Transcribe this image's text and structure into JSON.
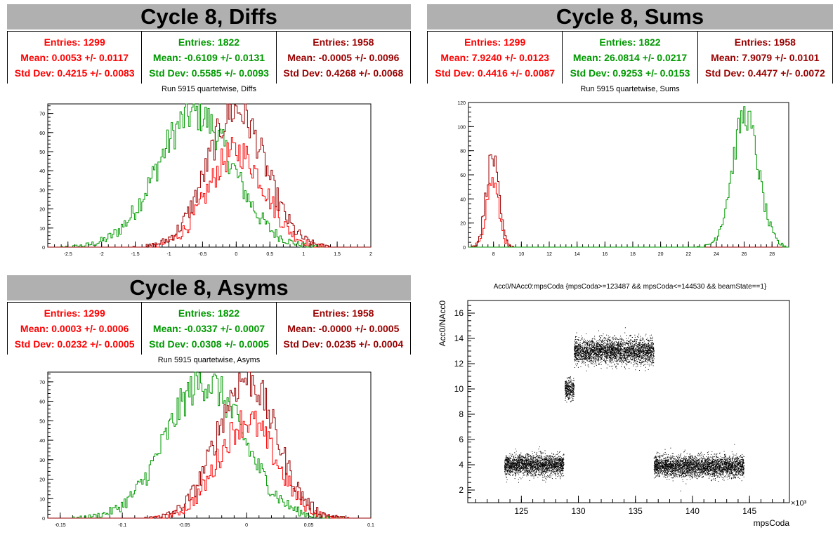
{
  "colors": {
    "red": "#ff0000",
    "green": "#009900",
    "darkred": "#990000"
  },
  "panels": {
    "diffs": {
      "title": "Cycle 8, Diffs",
      "subtitle": "Run 5915 quartetwise, Diffs",
      "stats": [
        {
          "color": "red",
          "entries": "Entries: 1299",
          "mean": "Mean: 0.0053 +/- 0.0117",
          "std": "Std Dev: 0.4215 +/- 0.0083"
        },
        {
          "color": "green",
          "entries": "Entries: 1822",
          "mean": "Mean: -0.6109 +/- 0.0131",
          "std": "Std Dev: 0.5585 +/- 0.0093"
        },
        {
          "color": "darkred",
          "entries": "Entries: 1958",
          "mean": "Mean: -0.0005 +/- 0.0096",
          "std": "Std Dev: 0.4268 +/- 0.0068"
        }
      ]
    },
    "sums": {
      "title": "Cycle 8, Sums",
      "subtitle": "Run 5915 quartetwise, Sums",
      "stats": [
        {
          "color": "red",
          "entries": "Entries: 1299",
          "mean": "Mean: 7.9240 +/- 0.0123",
          "std": "Std Dev: 0.4416 +/- 0.0087"
        },
        {
          "color": "green",
          "entries": "Entries: 1822",
          "mean": "Mean: 26.0814 +/- 0.0217",
          "std": "Std Dev: 0.9253 +/- 0.0153"
        },
        {
          "color": "darkred",
          "entries": "Entries: 1958",
          "mean": "Mean: 7.9079 +/- 0.0101",
          "std": "Std Dev: 0.4477 +/- 0.0072"
        }
      ]
    },
    "asyms": {
      "title": "Cycle 8, Asyms",
      "subtitle": "Run 5915 quartetwise, Asyms",
      "stats": [
        {
          "color": "red",
          "entries": "Entries: 1299",
          "mean": "Mean: 0.0003 +/- 0.0006",
          "std": "Std Dev: 0.0232 +/- 0.0005"
        },
        {
          "color": "green",
          "entries": "Entries: 1822",
          "mean": "Mean: -0.0337 +/- 0.0007",
          "std": "Std Dev: 0.0308 +/- 0.0005"
        },
        {
          "color": "darkred",
          "entries": "Entries: 1958",
          "mean": "Mean: -0.0000 +/- 0.0005",
          "std": "Std Dev: 0.0235 +/- 0.0004"
        }
      ]
    }
  },
  "chart_data": [
    {
      "id": "diffs",
      "type": "histogram",
      "title": "Run 5915 quartetwise, Diffs",
      "xlim": [
        -2.8,
        2.0
      ],
      "ylim": [
        0,
        75
      ],
      "xticks": [
        "-2.5",
        "-2",
        "-1.5",
        "-1",
        "-0.5",
        "0",
        "0.5",
        "1",
        "1.5",
        "2"
      ],
      "xtick_values": [
        -2.5,
        -2,
        -1.5,
        -1,
        -0.5,
        0,
        0.5,
        1,
        1.5,
        2
      ],
      "yticks": [
        "0",
        "10",
        "20",
        "30",
        "40",
        "50",
        "60",
        "70"
      ],
      "ytick_values": [
        0,
        10,
        20,
        30,
        40,
        50,
        60,
        70
      ],
      "series": [
        {
          "color": "green",
          "mean": -0.6109,
          "sigma": 0.5585,
          "peak": 70
        },
        {
          "color": "red",
          "mean": 0.0053,
          "sigma": 0.4215,
          "peak": 50
        },
        {
          "color": "darkred",
          "mean": -0.0005,
          "sigma": 0.4268,
          "peak": 72
        }
      ]
    },
    {
      "id": "sums",
      "type": "histogram",
      "title": "Run 5915 quartetwise, Sums",
      "xlim": [
        6.2,
        29.2
      ],
      "ylim": [
        0,
        120
      ],
      "xticks": [
        "8",
        "10",
        "12",
        "14",
        "16",
        "18",
        "20",
        "22",
        "24",
        "26",
        "28"
      ],
      "xtick_values": [
        8,
        10,
        12,
        14,
        16,
        18,
        20,
        22,
        24,
        26,
        28
      ],
      "yticks": [
        "0",
        "20",
        "40",
        "60",
        "80",
        "100",
        "120"
      ],
      "ytick_values": [
        0,
        20,
        40,
        60,
        80,
        100,
        120
      ],
      "series": [
        {
          "color": "red",
          "mean": 7.924,
          "sigma": 0.4416,
          "peak": 55
        },
        {
          "color": "darkred",
          "mean": 7.9079,
          "sigma": 0.4477,
          "peak": 75
        },
        {
          "color": "green",
          "mean": 26.0814,
          "sigma": 0.9253,
          "peak": 110
        }
      ]
    },
    {
      "id": "asyms",
      "type": "histogram",
      "title": "Run 5915 quartetwise, Asyms",
      "xlim": [
        -0.16,
        0.1
      ],
      "ylim": [
        0,
        75
      ],
      "xticks": [
        "-0.15",
        "-0.1",
        "-0.05",
        "0",
        "0.05",
        "0.1"
      ],
      "xtick_values": [
        -0.15,
        -0.1,
        -0.05,
        0,
        0.05,
        0.1
      ],
      "yticks": [
        "0",
        "10",
        "20",
        "30",
        "40",
        "50",
        "60",
        "70"
      ],
      "ytick_values": [
        0,
        10,
        20,
        30,
        40,
        50,
        60,
        70
      ],
      "series": [
        {
          "color": "green",
          "mean": -0.0337,
          "sigma": 0.0308,
          "peak": 70
        },
        {
          "color": "red",
          "mean": 0.0003,
          "sigma": 0.0232,
          "peak": 50
        },
        {
          "color": "darkred",
          "mean": 0.0,
          "sigma": 0.0235,
          "peak": 72
        }
      ]
    },
    {
      "id": "scatter",
      "type": "scatter",
      "title": "Acc0/NAcc0:mpsCoda {mpsCoda>=123487 && mpsCoda<=144530 && beamState==1}",
      "xlabel": "mpsCoda",
      "ylabel": "Acc0/NAcc0",
      "x_multiplier": "×10³",
      "xlim": [
        120.3,
        148.5
      ],
      "ylim": [
        1,
        17
      ],
      "xticks": [
        "125",
        "130",
        "135",
        "140",
        "145"
      ],
      "xtick_values": [
        125,
        130,
        135,
        140,
        145
      ],
      "yticks": [
        "2",
        "4",
        "6",
        "8",
        "10",
        "12",
        "14",
        "16"
      ],
      "ytick_values": [
        2,
        4,
        6,
        8,
        10,
        12,
        14,
        16
      ],
      "segments": [
        {
          "x": [
            123.5,
            128.7
          ],
          "y_center": 4.0,
          "y_spread": 0.9
        },
        {
          "x": [
            128.8,
            129.6
          ],
          "y_center": 10.0,
          "y_spread": 0.9
        },
        {
          "x": [
            129.6,
            136.6
          ],
          "y_center": 13.0,
          "y_spread": 1.1
        },
        {
          "x": [
            136.6,
            144.5
          ],
          "y_center": 3.9,
          "y_spread": 0.9
        }
      ]
    }
  ]
}
